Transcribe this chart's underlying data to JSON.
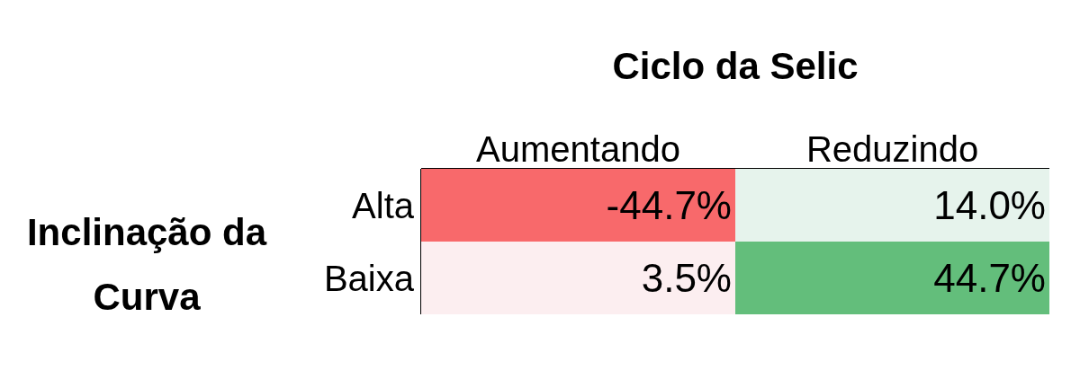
{
  "chart_data": {
    "type": "heatmap",
    "title": "Ciclo da Selic",
    "ylabel": "Inclinação da Curva",
    "categories": [
      "Aumentando",
      "Reduzindo"
    ],
    "y_categories": [
      "Alta",
      "Baixa"
    ],
    "cells": [
      [
        -44.7,
        14.0
      ],
      [
        3.5,
        44.7
      ]
    ],
    "cell_labels": [
      [
        "-44.7%",
        "14.0%"
      ],
      [
        "3.5%",
        "44.7%"
      ]
    ]
  }
}
